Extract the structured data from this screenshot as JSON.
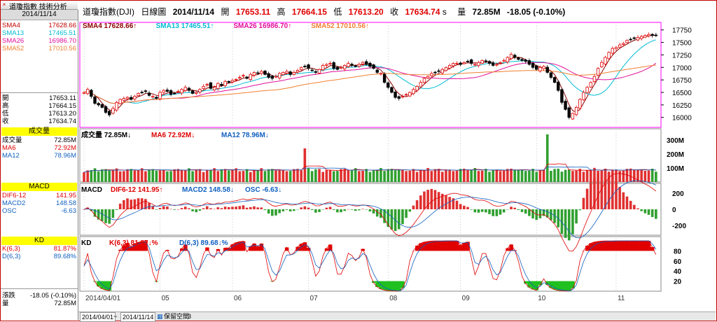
{
  "tab": {
    "title": "道瓊指數 技術分析"
  },
  "header": {
    "name": "道瓊指數(DJI)",
    "period": "日線圖",
    "date": "2014/11/14",
    "open_label": "開",
    "open": "17653.11",
    "high_label": "高",
    "high": "17664.15",
    "low_label": "低",
    "low": "17613.20",
    "close_label": "收",
    "close": "17634.74",
    "close_suffix": "s",
    "vol_label": "量",
    "volume": "72.85M",
    "change": "-18.05 (-0.10%)"
  },
  "sidebar": {
    "date": "2014/11/14",
    "sma": [
      {
        "label": "SMA4",
        "value": "17628.66",
        "color": "#c00000"
      },
      {
        "label": "SMA13",
        "value": "17465.51",
        "color": "#00bcd4"
      },
      {
        "label": "SMA26",
        "value": "16986.70",
        "color": "#e0109a"
      },
      {
        "label": "SMA52",
        "value": "17010.56",
        "color": "#f08030"
      }
    ],
    "ohlc": [
      {
        "label": "開",
        "value": "17653.11"
      },
      {
        "label": "高",
        "value": "17664.15"
      },
      {
        "label": "低",
        "value": "17613.20"
      },
      {
        "label": "收",
        "value": "17634.74"
      }
    ],
    "volume_title": "成交量",
    "volume_rows": [
      {
        "label": "成交量",
        "value": "72.85M",
        "color": "#000000"
      },
      {
        "label": "MA6",
        "value": "72.92M",
        "color": "#e00000"
      },
      {
        "label": "MA12",
        "value": "78.96M",
        "color": "#1060c0"
      }
    ],
    "macd_title": "MACD",
    "macd_rows": [
      {
        "label": "DIF6-12",
        "value": "141.95",
        "color": "#e00000"
      },
      {
        "label": "MACD2",
        "value": "148.58",
        "color": "#1060c0"
      },
      {
        "label": "OSC",
        "value": "-6.63",
        "color": "#1060c0"
      }
    ],
    "kd_title": "KD",
    "kd_rows": [
      {
        "label": "K(6,3)",
        "value": "81.87%",
        "color": "#e00000"
      },
      {
        "label": "D(6,3)",
        "value": "89.68%",
        "color": "#1060c0"
      }
    ],
    "change_label": "漲跌",
    "change_value": "-18.05 (-0.10%)",
    "vol_label": "量",
    "vol_value": "72.85M"
  },
  "bottom_bar": {
    "start": "2014/04/01",
    "end": "2014/11/14",
    "tool": "保留空間",
    "num": "3"
  },
  "chart_data": [
    {
      "type": "candlestick",
      "title": "SMA4 17628.66↑  SMA13 17465.51↑  SMA26 16986.70↑  SMA52 17010.56↑",
      "legend": [
        {
          "name": "SMA4 17628.66",
          "arrow": "↑",
          "color": "#8b0000"
        },
        {
          "name": "SMA13 17465.51",
          "arrow": "↑",
          "color": "#00bcd4"
        },
        {
          "name": "SMA26 16986.70",
          "arrow": "↑",
          "color": "#e0109a"
        },
        {
          "name": "SMA52 17010.56",
          "arrow": "↑",
          "color": "#f08030"
        }
      ],
      "ylim": [
        15800,
        17900
      ],
      "yticks": [
        16000,
        16250,
        16500,
        16750,
        17000,
        17250,
        17500,
        17750
      ],
      "x_months": [
        "2014/04/01",
        "05",
        "06",
        "07",
        "08",
        "09",
        "10",
        "11"
      ],
      "x_month_index": [
        0,
        21,
        41,
        62,
        84,
        104,
        125,
        147
      ],
      "closes": [
        16500,
        16560,
        16420,
        16280,
        16250,
        16200,
        16100,
        16050,
        16180,
        16300,
        16360,
        16380,
        16400,
        16360,
        16420,
        16480,
        16500,
        16520,
        16440,
        16420,
        16380,
        16500,
        16540,
        16520,
        16460,
        16480,
        16520,
        16560,
        16600,
        16540,
        16480,
        16500,
        16560,
        16620,
        16660,
        16580,
        16600,
        16680,
        16640,
        16720,
        16700,
        16740,
        16760,
        16800,
        16840,
        16780,
        16860,
        16900,
        16880,
        16920,
        16860,
        16800,
        16780,
        16820,
        16880,
        16900,
        16920,
        16860,
        16900,
        16940,
        17000,
        17020,
        16980,
        16940,
        16900,
        16960,
        17040,
        17060,
        17080,
        16980,
        16960,
        17000,
        17040,
        17080,
        17040,
        17020,
        17060,
        17100,
        17060,
        17020,
        16980,
        16900,
        16880,
        16700,
        16600,
        16500,
        16400,
        16380,
        16420,
        16460,
        16500,
        16560,
        16620,
        16700,
        16780,
        16820,
        16880,
        16900,
        16920,
        16960,
        17000,
        17040,
        17080,
        17080,
        17060,
        17100,
        17120,
        17080,
        17060,
        17100,
        17140,
        17120,
        17080,
        17040,
        17060,
        17100,
        17140,
        17200,
        17260,
        17200,
        17160,
        17140,
        17120,
        17060,
        17000,
        16960,
        17000,
        17020,
        16900,
        16800,
        16700,
        16540,
        16300,
        16160,
        16000,
        16080,
        16200,
        16360,
        16500,
        16600,
        16700,
        16820,
        16980,
        17100,
        17200,
        17300,
        17380,
        17400,
        17450,
        17480,
        17540,
        17560,
        17580,
        17600,
        17620,
        17640,
        17660,
        17640,
        17634.74
      ],
      "volume_ticks": [
        "100M",
        "200M",
        "300M"
      ],
      "volume_legend": [
        {
          "name": "成交量 72.85M",
          "arrow": "↓",
          "color": "#000000"
        },
        {
          "name": "MA6 72.92M",
          "arrow": "↓",
          "color": "#e00000"
        },
        {
          "name": "MA12 78.96M",
          "arrow": "↓",
          "color": "#1060c0"
        }
      ],
      "volume_ylim": [
        0,
        360
      ],
      "volume_spikes": [
        {
          "index": 61,
          "value": 240
        },
        {
          "index": 128,
          "value": 340
        }
      ],
      "macd_legend": [
        {
          "name": "MACD",
          "color": "#000000"
        },
        {
          "name": "DIF6-12 141.95",
          "arrow": "↑",
          "color": "#e00000"
        },
        {
          "name": "MACD2 148.58",
          "arrow": "↓",
          "color": "#1060c0"
        },
        {
          "name": "OSC -6.63",
          "arrow": "↓",
          "color": "#1060c0"
        }
      ],
      "macd_ylim": [
        -320,
        320
      ],
      "macd_ticks": [
        -200,
        0,
        200
      ],
      "kd_legend": [
        {
          "name": "KD",
          "color": "#000000"
        },
        {
          "name": "K(6,3) 81.87",
          "arrow": "↓%",
          "color": "#e00000"
        },
        {
          "name": "D(6,3) 89.68",
          "arrow": "↓%",
          "color": "#1060c0"
        }
      ],
      "kd_ylim": [
        0,
        100
      ],
      "kd_ticks": [
        20,
        40,
        60,
        80
      ]
    }
  ]
}
